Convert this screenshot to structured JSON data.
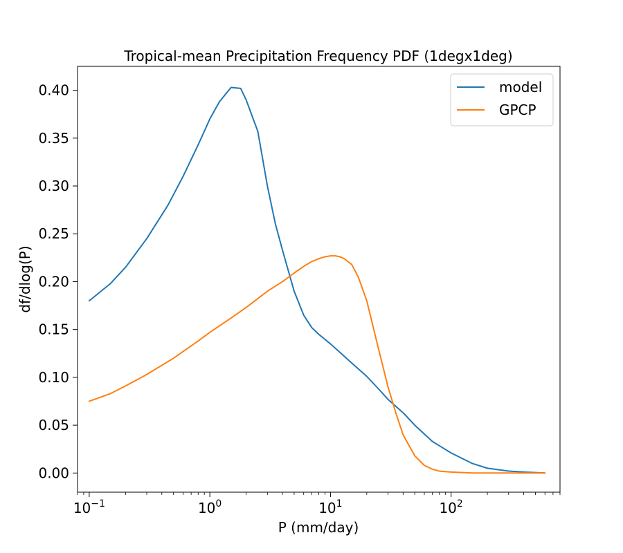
{
  "chart_data": {
    "type": "line",
    "title": "Tropical-mean Precipitation Frequency PDF (1degx1deg)",
    "xlabel": "P (mm/day)",
    "ylabel": "df/dlog(P)",
    "xscale": "log",
    "xlim": [
      0.08,
      800
    ],
    "ylim": [
      -0.02,
      0.425
    ],
    "x_ticks": [
      {
        "value": 0.1,
        "base": "10",
        "exp": "−1"
      },
      {
        "value": 1,
        "base": "10",
        "exp": "0"
      },
      {
        "value": 10,
        "base": "10",
        "exp": "1"
      },
      {
        "value": 100,
        "base": "10",
        "exp": "2"
      }
    ],
    "y_ticks": [
      {
        "value": 0.0,
        "label": "0.00"
      },
      {
        "value": 0.05,
        "label": "0.05"
      },
      {
        "value": 0.1,
        "label": "0.10"
      },
      {
        "value": 0.15,
        "label": "0.15"
      },
      {
        "value": 0.2,
        "label": "0.20"
      },
      {
        "value": 0.25,
        "label": "0.25"
      },
      {
        "value": 0.3,
        "label": "0.30"
      },
      {
        "value": 0.35,
        "label": "0.35"
      },
      {
        "value": 0.4,
        "label": "0.40"
      }
    ],
    "legend_position": "top-right",
    "series": [
      {
        "name": "model",
        "color": "#1f77b4",
        "x": [
          0.1,
          0.15,
          0.2,
          0.3,
          0.45,
          0.6,
          0.8,
          1.0,
          1.2,
          1.5,
          1.8,
          2.0,
          2.5,
          3.0,
          3.5,
          4.0,
          5.0,
          6.0,
          7.0,
          8.0,
          10.0,
          12.0,
          15.0,
          20.0,
          25.0,
          30.0,
          40.0,
          50.0,
          70.0,
          100.0,
          150.0,
          200.0,
          300.0,
          400.0,
          600.0
        ],
        "values": [
          0.18,
          0.198,
          0.215,
          0.245,
          0.28,
          0.31,
          0.343,
          0.37,
          0.388,
          0.403,
          0.402,
          0.39,
          0.357,
          0.3,
          0.26,
          0.233,
          0.19,
          0.165,
          0.152,
          0.145,
          0.135,
          0.126,
          0.115,
          0.101,
          0.088,
          0.077,
          0.063,
          0.05,
          0.033,
          0.021,
          0.01,
          0.005,
          0.002,
          0.001,
          0.0
        ]
      },
      {
        "name": "GPCP",
        "color": "#ff7f0e",
        "x": [
          0.1,
          0.15,
          0.2,
          0.3,
          0.5,
          0.8,
          1.0,
          1.5,
          2.0,
          3.0,
          4.0,
          5.0,
          6.0,
          7.0,
          8.0,
          9.0,
          10.0,
          11.0,
          12.0,
          13.0,
          15.0,
          17.0,
          20.0,
          25.0,
          30.0,
          35.0,
          40.0,
          50.0,
          60.0,
          70.0,
          80.0,
          100.0,
          150.0,
          200.0,
          300.0,
          600.0
        ],
        "values": [
          0.075,
          0.083,
          0.091,
          0.103,
          0.12,
          0.138,
          0.147,
          0.162,
          0.173,
          0.19,
          0.2,
          0.209,
          0.216,
          0.221,
          0.224,
          0.226,
          0.227,
          0.227,
          0.226,
          0.224,
          0.218,
          0.205,
          0.18,
          0.13,
          0.09,
          0.062,
          0.04,
          0.018,
          0.008,
          0.004,
          0.002,
          0.001,
          0.0,
          0.0,
          0.0,
          0.0
        ]
      }
    ]
  }
}
